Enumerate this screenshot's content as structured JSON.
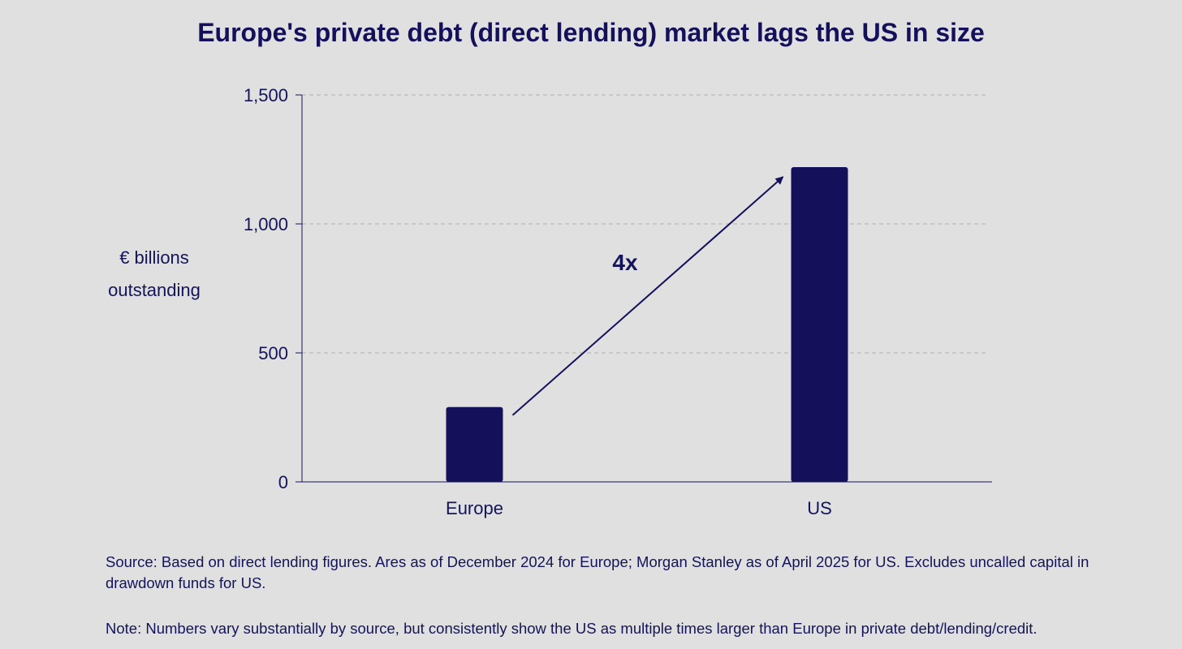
{
  "chart_data": {
    "type": "bar",
    "title": "Europe's private debt (direct lending) market lags the US in size",
    "ylabel_lines": [
      "€ billions",
      "outstanding"
    ],
    "xlabel": "",
    "categories": [
      "Europe",
      "US"
    ],
    "values": [
      290,
      1220
    ],
    "ylim": [
      0,
      1500
    ],
    "yticks": [
      0,
      500,
      1000,
      1500
    ],
    "ytick_labels": [
      "0",
      "500",
      "1,000",
      "1,500"
    ],
    "grid": "horizontal-dashed",
    "annotation": {
      "text": "4x",
      "from": "Europe",
      "to": "US"
    },
    "colors": {
      "bar": "#14105a",
      "text": "#14145a",
      "grid": "#b9bab9",
      "background": "#dfe0df"
    }
  },
  "footnotes": {
    "source": "Source: Based on direct lending figures. Ares as of December 2024 for Europe; Morgan Stanley as of April 2025 for US. Excludes uncalled capital in drawdown funds for US.",
    "note": "Note: Numbers vary substantially by source, but consistently show the US as multiple times larger than Europe in private debt/lending/credit."
  }
}
